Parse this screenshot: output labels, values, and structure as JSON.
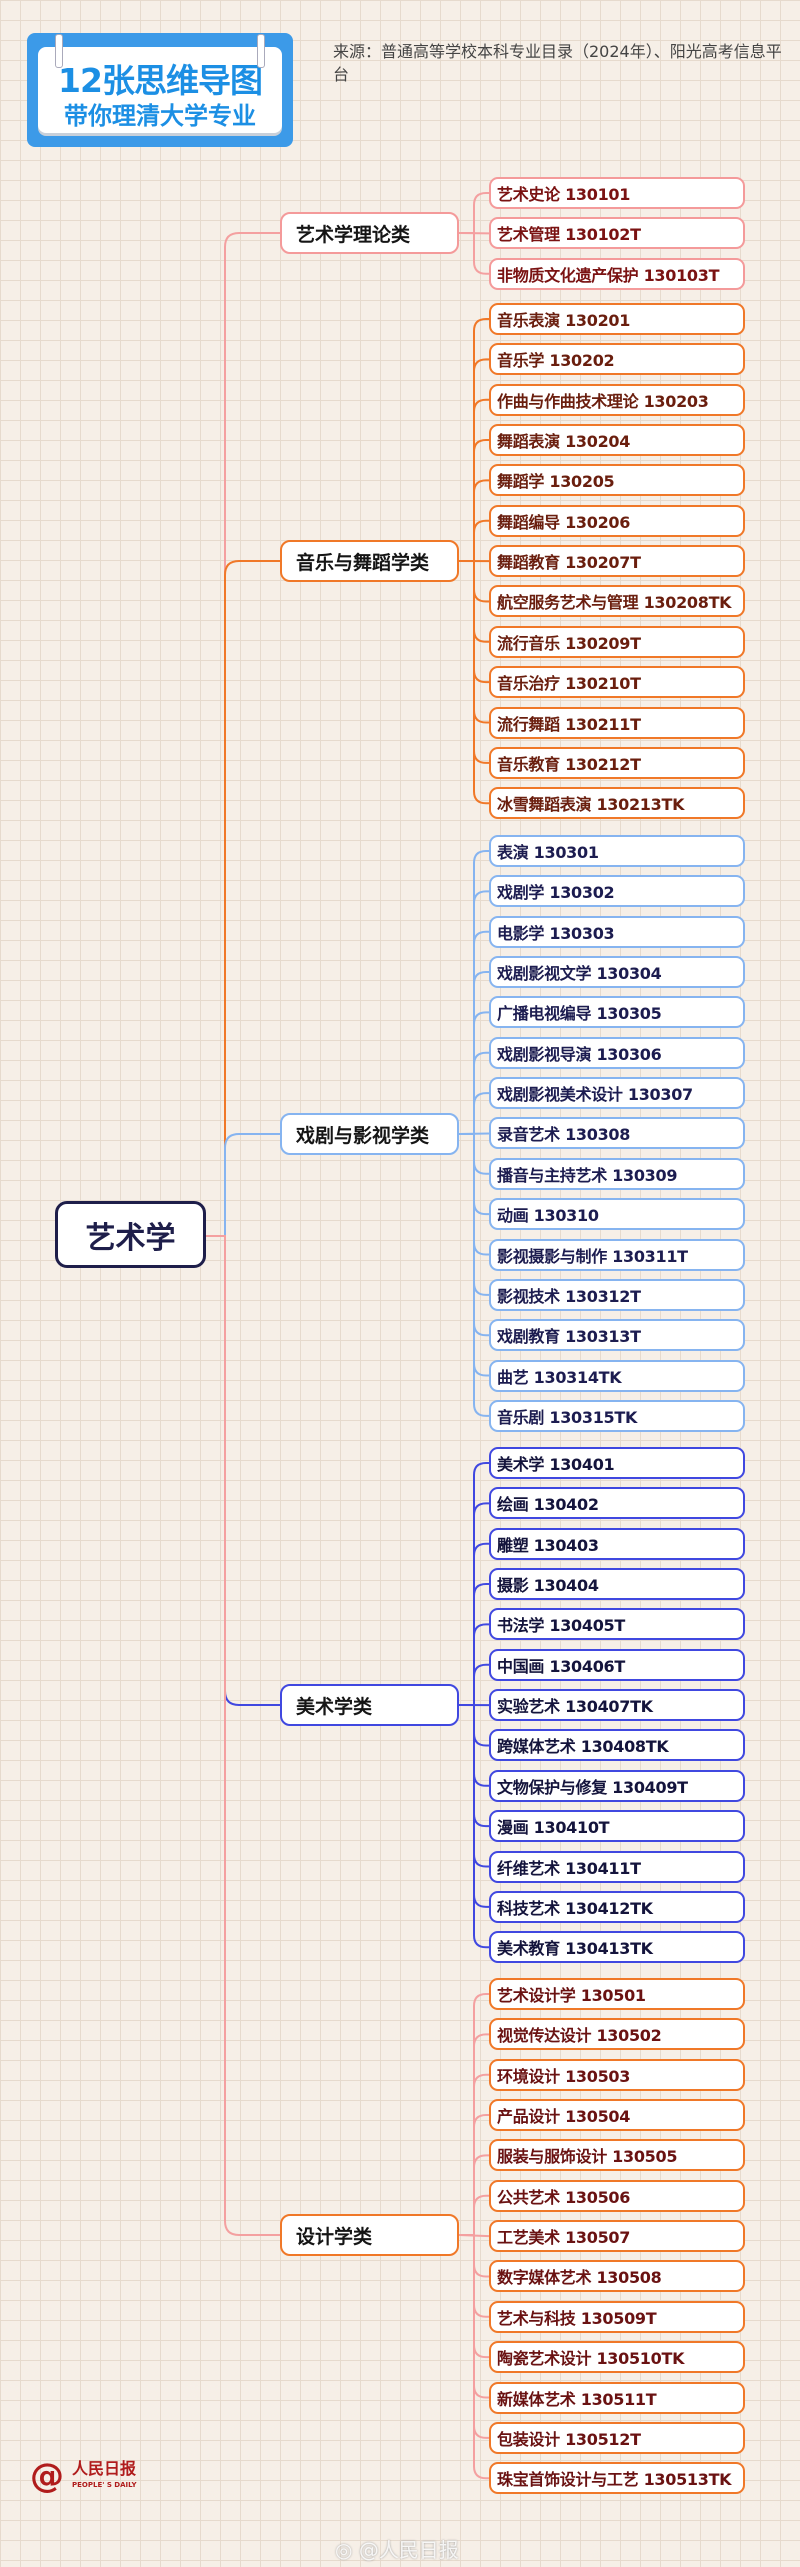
{
  "header": {
    "title_line1": "12张思维导图",
    "title_line2": "带你理清大学专业",
    "source": "来源：普通高等学校本科专业目录（2024年）、阳光高考信息平台"
  },
  "root": {
    "label": "艺术学",
    "color": "#1e1e4a"
  },
  "groups": [
    {
      "label": "艺术学理论类",
      "line_color": "#f4a0a0",
      "border_color": "#f49a9a",
      "text_color": "#7a1212",
      "leaves": [
        "艺术史论 130101",
        "艺术管理 130102T",
        "非物质文化遗产保护 130103T"
      ]
    },
    {
      "label": "音乐与舞蹈学类",
      "line_color": "#f07828",
      "border_color": "#f07828",
      "text_color": "#6a1e0e",
      "leaves": [
        "音乐表演 130201",
        "音乐学 130202",
        "作曲与作曲技术理论 130203",
        "舞蹈表演 130204",
        "舞蹈学 130205",
        "舞蹈编导 130206",
        "舞蹈教育 130207T",
        "航空服务艺术与管理 130208TK",
        "流行音乐 130209T",
        "音乐治疗 130210T",
        "流行舞蹈 130211T",
        "音乐教育 130212T",
        "冰雪舞蹈表演 130213TK"
      ]
    },
    {
      "label": "戏剧与影视学类",
      "line_color": "#86b4f0",
      "border_color": "#86b4f0",
      "text_color": "#1c1c50",
      "leaves": [
        "表演 130301",
        "戏剧学 130302",
        "电影学 130303",
        "戏剧影视文学 130304",
        "广播电视编导 130305",
        "戏剧影视导演 130306",
        "戏剧影视美术设计 130307",
        "录音艺术 130308",
        "播音与主持艺术 130309",
        "动画 130310",
        "影视摄影与制作 130311T",
        "影视技术 130312T",
        "戏剧教育 130313T",
        "曲艺 130314TK",
        "音乐剧 130315TK"
      ]
    },
    {
      "label": "美术学类",
      "line_color": "#4048e0",
      "border_color": "#4048e0",
      "text_color": "#14143c",
      "leaves": [
        "美术学 130401",
        "绘画 130402",
        "雕塑 130403",
        "摄影 130404",
        "书法学 130405T",
        "中国画 130406T",
        "实验艺术 130407TK",
        "跨媒体艺术 130408TK",
        "文物保护与修复 130409T",
        "漫画 130410T",
        "纤维艺术 130411T",
        "科技艺术 130412TK",
        "美术教育 130413TK"
      ]
    },
    {
      "label": "设计学类",
      "line_color": "#f4a0a0",
      "border_color": "#f07828",
      "text_color": "#6a1212",
      "leaves": [
        "艺术设计学 130501",
        "视觉传达设计 130502",
        "环境设计 130503",
        "产品设计 130504",
        "服装与服饰设计 130505",
        "公共艺术 130506",
        "工艺美术 130507",
        "数字媒体艺术 130508",
        "艺术与科技 130509T",
        "陶瓷艺术设计 130510TK",
        "新媒体艺术 130511T",
        "包装设计 130512T",
        "珠宝首饰设计与工艺 130513TK"
      ]
    }
  ],
  "footer": {
    "logo_cn": "人民日报",
    "logo_en": "PEOPLE' S DAILY",
    "watermark": "@人民日报"
  }
}
